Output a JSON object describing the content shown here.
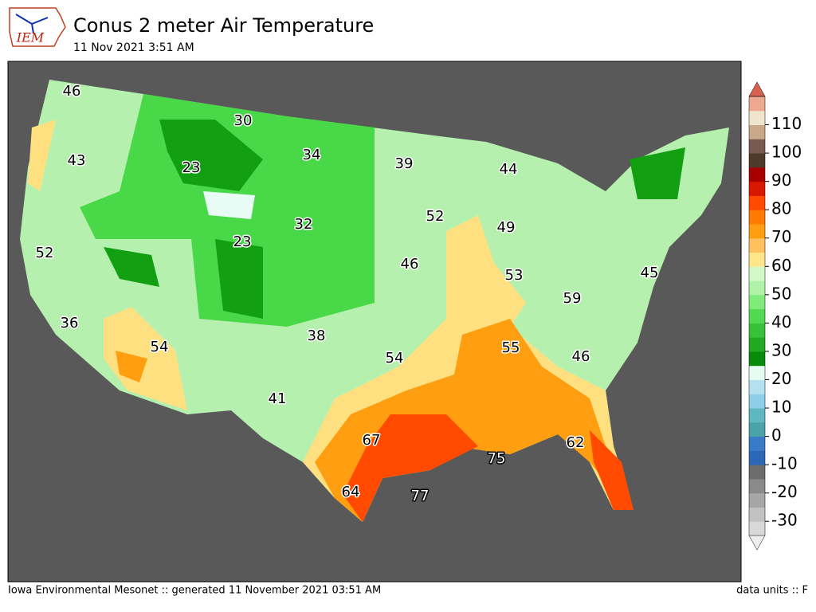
{
  "header": {
    "logo": "IEM",
    "title": "Conus 2 meter Air Temperature",
    "subtitle": "11 Nov 2021 3:51 AM"
  },
  "map": {
    "labels": [
      46,
      30,
      43,
      23,
      34,
      39,
      44,
      52,
      49,
      32,
      23,
      52,
      46,
      53,
      45,
      59,
      36,
      54,
      38,
      55,
      54,
      46,
      41,
      67,
      75,
      62,
      64,
      77
    ]
  },
  "colorbar": {
    "ticks": [
      -30,
      -20,
      -10,
      0,
      10,
      20,
      30,
      40,
      50,
      60,
      70,
      80,
      90,
      100,
      110
    ],
    "colors": [
      "#eeeeee",
      "#d8d8d8",
      "#c2c2c2",
      "#a6a6a6",
      "#8a8a8a",
      "#6c6c6c",
      "#2c67b8",
      "#3a7bc8",
      "#4aa3a8",
      "#5fb8c0",
      "#8ecde8",
      "#b4e0f0",
      "#e6fbf2",
      "#0a8a0a",
      "#22a822",
      "#38c038",
      "#52d852",
      "#80ea7a",
      "#b0f2a8",
      "#d2f8c8",
      "#ffe68a",
      "#ffc060",
      "#ff9e10",
      "#ff7a00",
      "#ff4a00",
      "#d81800",
      "#a80000",
      "#4e3a28",
      "#7a5a50",
      "#c8a888",
      "#f0e4cc",
      "#eea890",
      "#d86050"
    ]
  },
  "footer": {
    "credit": "Iowa Environmental Mesonet :: generated 11 November 2021 03:51 AM",
    "units": "data units :: F"
  }
}
